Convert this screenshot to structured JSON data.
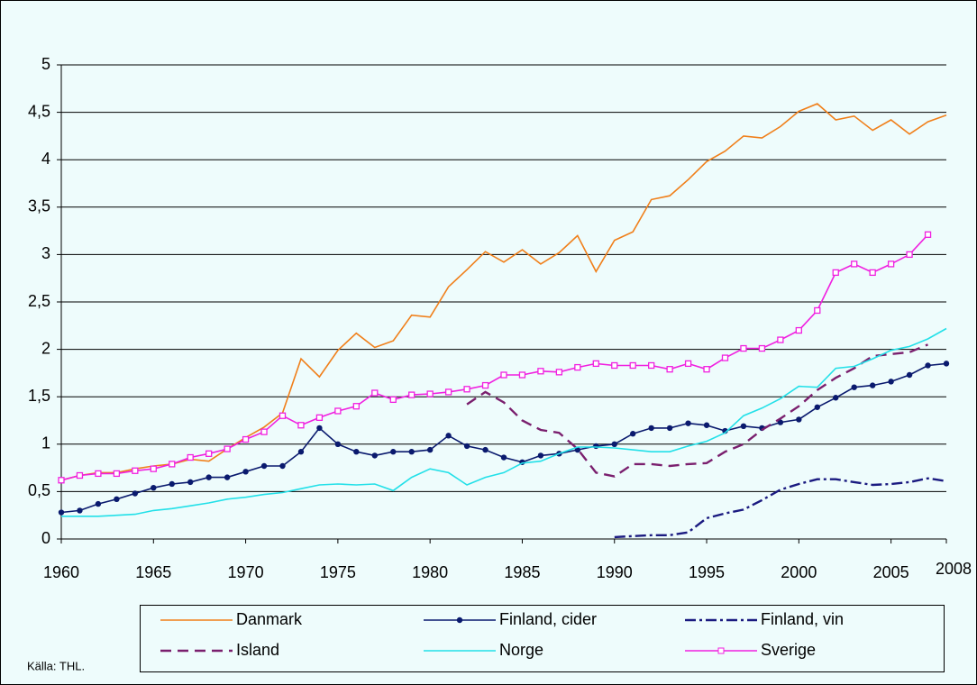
{
  "chart_data": {
    "type": "line",
    "x": [
      1960,
      1961,
      1962,
      1963,
      1964,
      1965,
      1966,
      1967,
      1968,
      1969,
      1970,
      1971,
      1972,
      1973,
      1974,
      1975,
      1976,
      1977,
      1978,
      1979,
      1980,
      1981,
      1982,
      1983,
      1984,
      1985,
      1986,
      1987,
      1988,
      1989,
      1990,
      1991,
      1992,
      1993,
      1994,
      1995,
      1996,
      1997,
      1998,
      1999,
      2000,
      2001,
      2002,
      2003,
      2004,
      2005,
      2006,
      2007,
      2008
    ],
    "xlim": [
      1960,
      2008
    ],
    "xticks": [
      1960,
      1965,
      1970,
      1975,
      1980,
      1985,
      1990,
      1995,
      2000,
      2005,
      2008
    ],
    "ylim": [
      0,
      5
    ],
    "yticks": [
      0,
      {
        "value": 0.5,
        "label": "0,5"
      },
      1,
      {
        "value": 1.5,
        "label": "1,5"
      },
      2,
      {
        "value": 2.5,
        "label": "2,5"
      },
      3,
      {
        "value": 3.5,
        "label": "3,5"
      },
      4,
      {
        "value": 4.5,
        "label": "4,5"
      },
      5
    ],
    "grid": true,
    "source": "Källa: THL.",
    "series": [
      {
        "name": "Danmark",
        "color": "#f07f1a",
        "dash": "solid",
        "marker": "none",
        "values": [
          0.62,
          0.67,
          0.7,
          0.7,
          0.74,
          0.77,
          0.79,
          0.84,
          0.82,
          0.95,
          1.07,
          1.18,
          1.33,
          1.9,
          1.71,
          1.99,
          2.17,
          2.02,
          2.09,
          2.36,
          2.34,
          2.66,
          2.84,
          3.03,
          2.92,
          3.05,
          2.9,
          3.02,
          3.2,
          2.82,
          3.15,
          3.24,
          3.58,
          3.62,
          3.79,
          3.98,
          4.09,
          4.25,
          4.23,
          4.35,
          4.51,
          4.59,
          4.42,
          4.46,
          4.31,
          4.42,
          4.27,
          4.4,
          4.47
        ]
      },
      {
        "name": "Finland, cider",
        "color": "#0a1a6e",
        "dash": "solid",
        "marker": "circle",
        "values": [
          0.28,
          0.3,
          0.37,
          0.42,
          0.48,
          0.54,
          0.58,
          0.6,
          0.65,
          0.65,
          0.71,
          0.77,
          0.77,
          0.92,
          1.17,
          1.0,
          0.92,
          0.88,
          0.92,
          0.92,
          0.94,
          1.09,
          0.98,
          0.94,
          0.86,
          0.81,
          0.88,
          0.9,
          0.94,
          0.98,
          1.0,
          1.11,
          1.17,
          1.17,
          1.22,
          1.2,
          1.14,
          1.19,
          1.17,
          1.23,
          1.26,
          1.39,
          1.49,
          1.6,
          1.62,
          1.66,
          1.73,
          1.83,
          1.85
        ]
      },
      {
        "name": "Finland, vin",
        "color": "#1a1a80",
        "dash": "dashdot",
        "marker": "none",
        "values": [
          null,
          null,
          null,
          null,
          null,
          null,
          null,
          null,
          null,
          null,
          null,
          null,
          null,
          null,
          null,
          null,
          null,
          null,
          null,
          null,
          null,
          null,
          null,
          null,
          null,
          null,
          null,
          null,
          null,
          null,
          0.02,
          0.03,
          0.04,
          0.04,
          0.07,
          0.22,
          0.27,
          0.31,
          0.41,
          0.52,
          0.58,
          0.63,
          0.63,
          0.6,
          0.57,
          0.58,
          0.6,
          0.64,
          0.61
        ]
      },
      {
        "name": "Island",
        "color": "#7a1f6e",
        "dash": "dash",
        "marker": "none",
        "values": [
          null,
          null,
          null,
          null,
          null,
          null,
          null,
          null,
          null,
          null,
          null,
          null,
          null,
          null,
          null,
          null,
          null,
          null,
          null,
          null,
          null,
          null,
          1.42,
          1.55,
          1.44,
          1.25,
          1.15,
          1.12,
          0.95,
          0.7,
          0.66,
          0.79,
          0.79,
          0.77,
          0.79,
          0.8,
          0.92,
          1.0,
          1.15,
          1.27,
          1.4,
          1.57,
          1.7,
          1.8,
          1.93,
          1.95,
          1.97,
          2.05,
          null
        ]
      },
      {
        "name": "Norge",
        "color": "#22e0e8",
        "dash": "solid",
        "marker": "none",
        "values": [
          0.24,
          0.24,
          0.24,
          0.25,
          0.26,
          0.3,
          0.32,
          0.35,
          0.38,
          0.42,
          0.44,
          0.47,
          0.49,
          0.53,
          0.57,
          0.58,
          0.57,
          0.58,
          0.51,
          0.65,
          0.74,
          0.7,
          0.57,
          0.65,
          0.7,
          0.8,
          0.82,
          0.9,
          0.97,
          0.97,
          0.96,
          0.94,
          0.92,
          0.92,
          0.98,
          1.03,
          1.12,
          1.3,
          1.38,
          1.48,
          1.61,
          1.6,
          1.8,
          1.82,
          1.9,
          1.99,
          2.03,
          2.11,
          2.22
        ]
      },
      {
        "name": "Sverige",
        "color": "#f020e0",
        "dash": "solid",
        "marker": "square",
        "values": [
          0.62,
          0.67,
          0.69,
          0.69,
          0.72,
          0.74,
          0.79,
          0.86,
          0.9,
          0.95,
          1.05,
          1.13,
          1.3,
          1.2,
          1.28,
          1.35,
          1.4,
          1.54,
          1.47,
          1.52,
          1.53,
          1.55,
          1.58,
          1.62,
          1.73,
          1.73,
          1.77,
          1.76,
          1.81,
          1.85,
          1.83,
          1.83,
          1.83,
          1.79,
          1.85,
          1.79,
          1.91,
          2.01,
          2.01,
          2.1,
          2.2,
          2.41,
          2.81,
          2.9,
          2.81,
          2.9,
          3.0,
          3.21,
          null
        ]
      }
    ]
  }
}
